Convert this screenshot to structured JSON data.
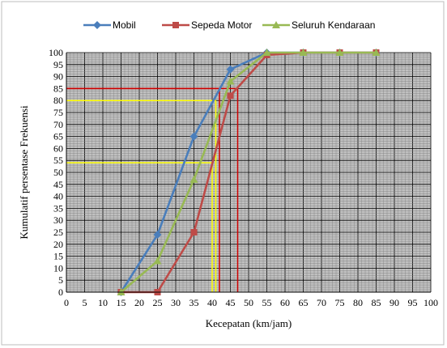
{
  "chart_data": {
    "type": "line",
    "xlabel": "Kecepatan (km/jam)",
    "ylabel": "Kumulatif persentase Frekuensi",
    "xlim": [
      0,
      100
    ],
    "ylim": [
      0,
      100
    ],
    "x_ticks": [
      0,
      5,
      10,
      15,
      20,
      25,
      30,
      35,
      40,
      45,
      50,
      55,
      60,
      65,
      70,
      75,
      80,
      85,
      90,
      95,
      100
    ],
    "y_ticks": [
      0,
      5,
      10,
      15,
      20,
      25,
      30,
      35,
      40,
      45,
      50,
      55,
      60,
      65,
      70,
      75,
      80,
      85,
      90,
      95,
      100
    ],
    "grid": true,
    "legend_position": "top",
    "x": [
      15,
      25,
      35,
      45,
      55,
      65,
      75,
      85
    ],
    "series": [
      {
        "name": "Mobil",
        "color": "#4a7ebb",
        "marker": "diamond",
        "values": [
          0,
          24,
          65,
          93,
          100,
          100,
          100,
          100
        ]
      },
      {
        "name": "Sepeda Motor",
        "color": "#be4b48",
        "marker": "square",
        "values": [
          0,
          0,
          25,
          82,
          99,
          100,
          100,
          100
        ]
      },
      {
        "name": "Seluruh Kendaraan",
        "color": "#98b954",
        "marker": "triangle",
        "values": [
          0,
          13,
          47,
          88,
          100,
          100,
          100,
          100
        ]
      }
    ],
    "reference_lines": [
      {
        "color": "#cc0000",
        "y": 85,
        "x": 47
      },
      {
        "color": "#cc0000",
        "y": 85,
        "x": 42
      },
      {
        "color": "#ffff00",
        "y": 80,
        "x": 41
      },
      {
        "color": "#ffff00",
        "y": 54,
        "x": 40
      }
    ]
  }
}
